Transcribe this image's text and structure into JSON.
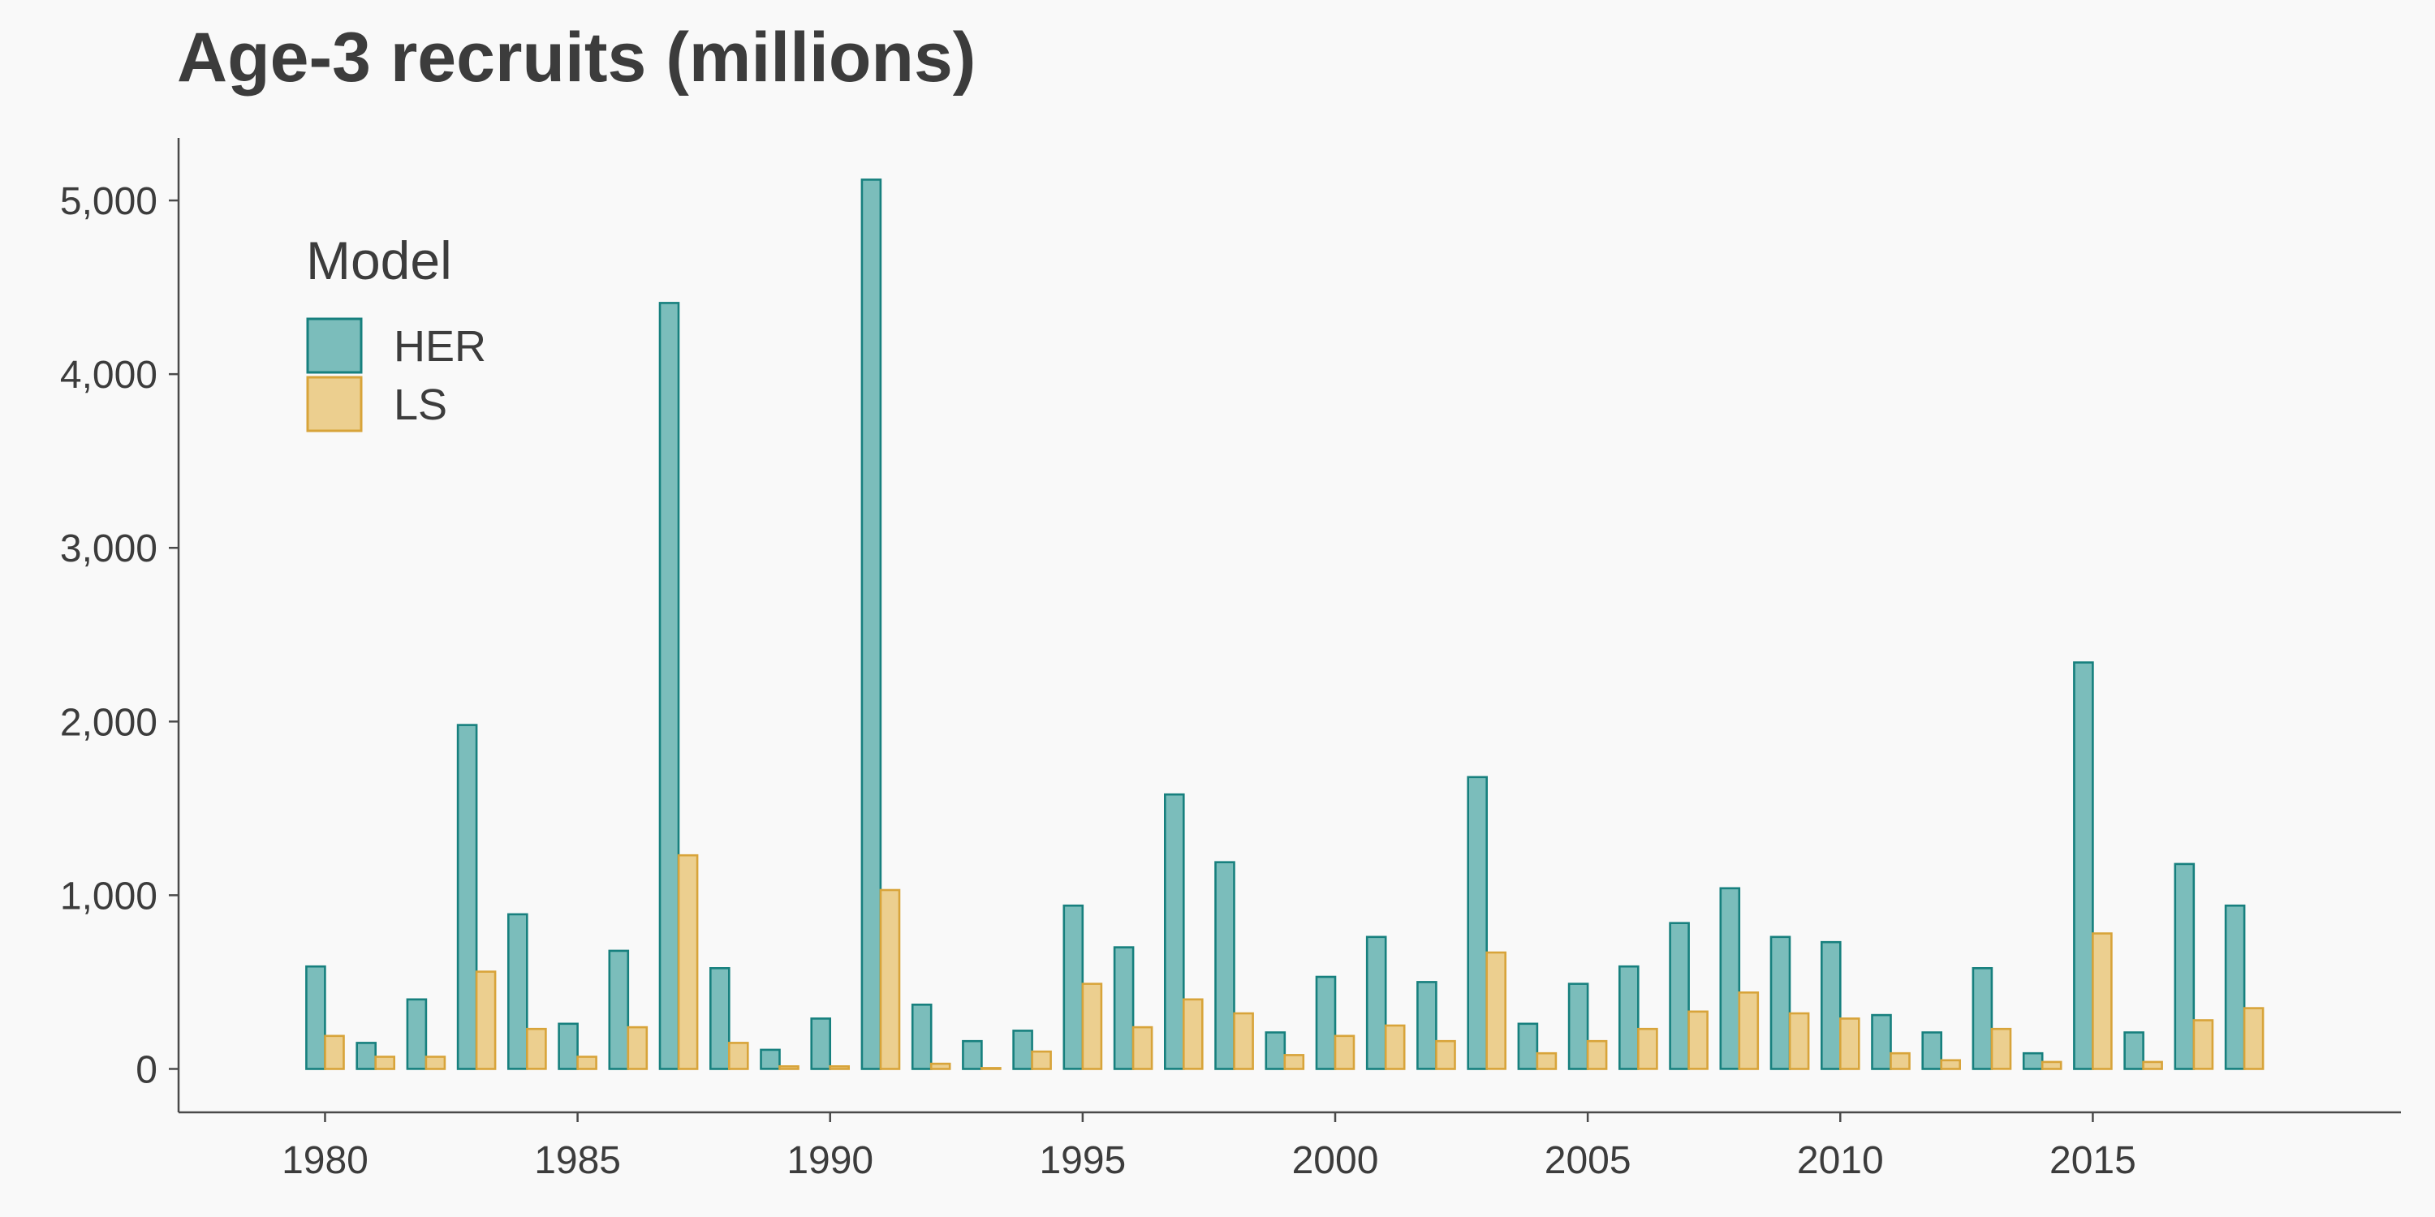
{
  "chart_data": {
    "type": "bar",
    "title": "Age-3 recruits (millions)",
    "xlabel": "",
    "ylabel": "",
    "categories": [
      1980,
      1981,
      1982,
      1983,
      1984,
      1985,
      1986,
      1987,
      1988,
      1989,
      1990,
      1991,
      1992,
      1993,
      1994,
      1995,
      1996,
      1997,
      1998,
      1999,
      2000,
      2001,
      2002,
      2003,
      2004,
      2005,
      2006,
      2007,
      2008,
      2009,
      2010,
      2011,
      2012,
      2013,
      2014,
      2015,
      2016,
      2017,
      2018
    ],
    "x_ticks": [
      1980,
      1985,
      1990,
      1995,
      2000,
      2005,
      2010,
      2015
    ],
    "x_tick_labels": [
      "1980",
      "1985",
      "1990",
      "1995",
      "2000",
      "2005",
      "2010",
      "2015"
    ],
    "y_ticks": [
      0,
      1000,
      2000,
      3000,
      4000,
      5000
    ],
    "y_tick_labels": [
      "0",
      "1,000",
      "2,000",
      "3,000",
      "4,000",
      "5,000"
    ],
    "xlim": [
      1977.1,
      2021.1
    ],
    "ylim": [
      -250,
      5360
    ],
    "grid": false,
    "legend": {
      "title": "Model",
      "position": "top-left"
    },
    "series": [
      {
        "name": "HER",
        "fill": "#7bbdbb",
        "stroke": "#17807e",
        "values": [
          590,
          150,
          400,
          1980,
          890,
          260,
          680,
          4410,
          580,
          110,
          290,
          5120,
          370,
          160,
          220,
          940,
          700,
          1580,
          1190,
          210,
          530,
          760,
          500,
          1680,
          260,
          490,
          590,
          840,
          1040,
          760,
          730,
          310,
          210,
          580,
          90,
          2340,
          210,
          1180,
          940
        ]
      },
      {
        "name": "LS",
        "fill": "#eccf8f",
        "stroke": "#d8a43a",
        "values": [
          190,
          70,
          70,
          560,
          230,
          70,
          240,
          1230,
          150,
          15,
          15,
          1030,
          30,
          5,
          100,
          490,
          240,
          400,
          320,
          80,
          190,
          250,
          160,
          670,
          90,
          160,
          230,
          330,
          440,
          320,
          290,
          90,
          50,
          230,
          40,
          780,
          40,
          280,
          350
        ]
      }
    ]
  }
}
